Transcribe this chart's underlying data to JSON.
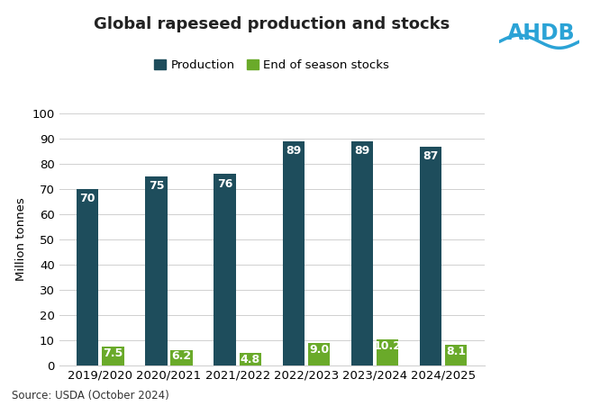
{
  "title": "Global rapeseed production and stocks",
  "categories": [
    "2019/2020",
    "2020/2021",
    "2021/2022",
    "2022/2023",
    "2023/2024",
    "2024/2025"
  ],
  "production": [
    70,
    75,
    76,
    89,
    89,
    87
  ],
  "stocks": [
    7.5,
    6.2,
    4.8,
    9.0,
    10.2,
    8.1
  ],
  "production_color": "#1e4d5c",
  "stocks_color": "#6aaa2a",
  "production_label": "Production",
  "stocks_label": "End of season stocks",
  "ylabel": "Million tonnes",
  "ylim": [
    0,
    100
  ],
  "yticks": [
    0,
    10,
    20,
    30,
    40,
    50,
    60,
    70,
    80,
    90,
    100
  ],
  "source": "Source: USDA (October 2024)",
  "bar_width": 0.32,
  "bar_gap": 0.05,
  "title_fontsize": 13,
  "label_fontsize": 9.5,
  "tick_fontsize": 9.5,
  "prod_annot_fontsize": 9,
  "stocks_annot_fontsize": 9,
  "background_color": "#ffffff",
  "ahdb_text": "AHDB",
  "ahdb_color": "#2ba3d6",
  "grid_color": "#d0d0d0"
}
